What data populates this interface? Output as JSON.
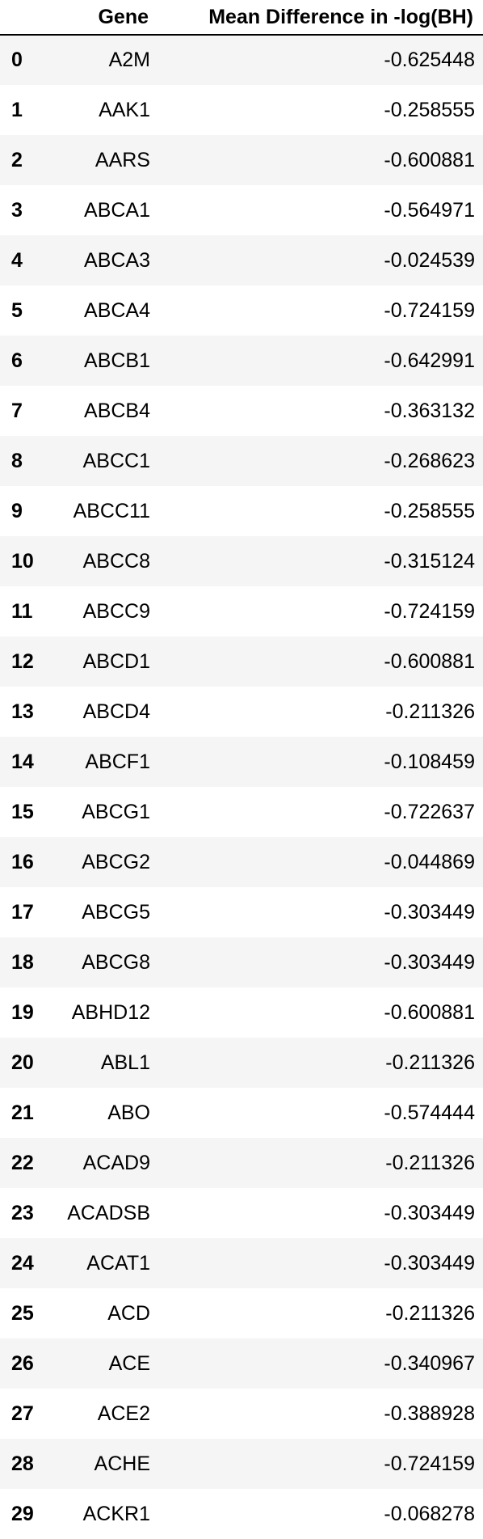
{
  "table": {
    "columns": [
      "",
      "Gene",
      "Mean Difference in -log(BH)"
    ],
    "rows": [
      {
        "index": "0",
        "gene": "A2M",
        "value": "-0.625448"
      },
      {
        "index": "1",
        "gene": "AAK1",
        "value": "-0.258555"
      },
      {
        "index": "2",
        "gene": "AARS",
        "value": "-0.600881"
      },
      {
        "index": "3",
        "gene": "ABCA1",
        "value": "-0.564971"
      },
      {
        "index": "4",
        "gene": "ABCA3",
        "value": "-0.024539"
      },
      {
        "index": "5",
        "gene": "ABCA4",
        "value": "-0.724159"
      },
      {
        "index": "6",
        "gene": "ABCB1",
        "value": "-0.642991"
      },
      {
        "index": "7",
        "gene": "ABCB4",
        "value": "-0.363132"
      },
      {
        "index": "8",
        "gene": "ABCC1",
        "value": "-0.268623"
      },
      {
        "index": "9",
        "gene": "ABCC11",
        "value": "-0.258555"
      },
      {
        "index": "10",
        "gene": "ABCC8",
        "value": "-0.315124"
      },
      {
        "index": "11",
        "gene": "ABCC9",
        "value": "-0.724159"
      },
      {
        "index": "12",
        "gene": "ABCD1",
        "value": "-0.600881"
      },
      {
        "index": "13",
        "gene": "ABCD4",
        "value": "-0.211326"
      },
      {
        "index": "14",
        "gene": "ABCF1",
        "value": "-0.108459"
      },
      {
        "index": "15",
        "gene": "ABCG1",
        "value": "-0.722637"
      },
      {
        "index": "16",
        "gene": "ABCG2",
        "value": "-0.044869"
      },
      {
        "index": "17",
        "gene": "ABCG5",
        "value": "-0.303449"
      },
      {
        "index": "18",
        "gene": "ABCG8",
        "value": "-0.303449"
      },
      {
        "index": "19",
        "gene": "ABHD12",
        "value": "-0.600881"
      },
      {
        "index": "20",
        "gene": "ABL1",
        "value": "-0.211326"
      },
      {
        "index": "21",
        "gene": "ABO",
        "value": "-0.574444"
      },
      {
        "index": "22",
        "gene": "ACAD9",
        "value": "-0.211326"
      },
      {
        "index": "23",
        "gene": "ACADSB",
        "value": "-0.303449"
      },
      {
        "index": "24",
        "gene": "ACAT1",
        "value": "-0.303449"
      },
      {
        "index": "25",
        "gene": "ACD",
        "value": "-0.211326"
      },
      {
        "index": "26",
        "gene": "ACE",
        "value": "-0.340967"
      },
      {
        "index": "27",
        "gene": "ACE2",
        "value": "-0.388928"
      },
      {
        "index": "28",
        "gene": "ACHE",
        "value": "-0.724159"
      },
      {
        "index": "29",
        "gene": "ACKR1",
        "value": "-0.068278"
      }
    ]
  }
}
